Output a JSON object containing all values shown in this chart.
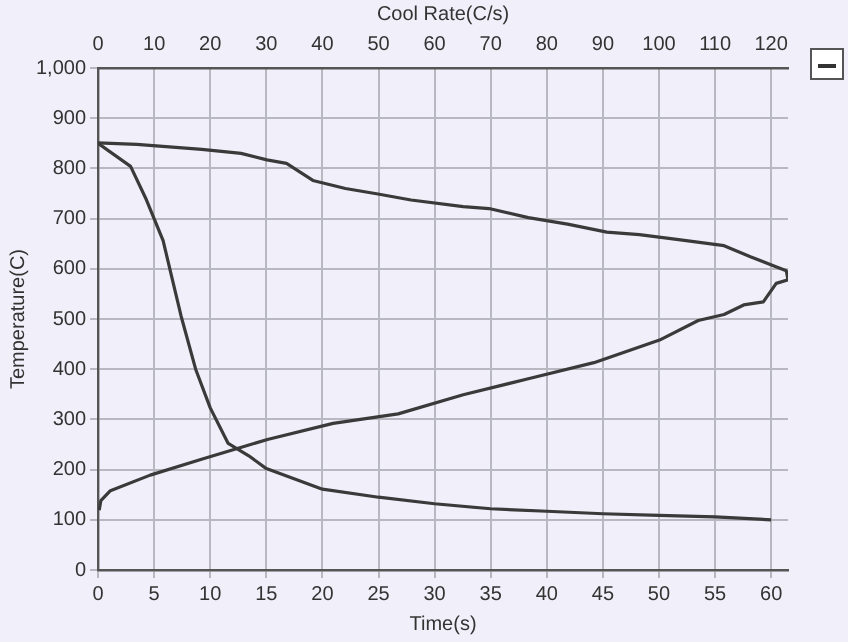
{
  "chart_data": {
    "type": "line",
    "xlabel": "Time(s)",
    "ylabel": "Temperature(C)",
    "x2label": "Cool Rate(C/s)",
    "xlim": [
      0,
      61.5
    ],
    "xticks": [
      0,
      5,
      10,
      15,
      20,
      25,
      30,
      35,
      40,
      45,
      50,
      55,
      60
    ],
    "x2lim": [
      0,
      123
    ],
    "x2ticks": [
      0,
      10,
      20,
      30,
      40,
      50,
      60,
      70,
      80,
      90,
      100,
      110,
      120
    ],
    "ylim": [
      0,
      1000
    ],
    "yticks": [
      0,
      100,
      200,
      300,
      400,
      500,
      600,
      700,
      800,
      900,
      {
        "value": 1000,
        "label": "1,000"
      }
    ],
    "grid": true,
    "marker": "none",
    "line_style": "solid",
    "series": [
      {
        "color": "#3a3a3a",
        "x": [
          0,
          2.9,
          4.3,
          5.8,
          6.6,
          7.4,
          8.7,
          10,
          11.6,
          13.4,
          15,
          20,
          25,
          30,
          35,
          40,
          45,
          50,
          55,
          60
        ],
        "values": [
          850,
          804,
          738,
          656,
          581,
          506,
          400,
          323,
          252,
          228,
          202,
          161,
          145,
          132,
          122,
          117,
          112,
          109,
          106,
          100
        ]
      },
      {
        "color": "#3a3a3a",
        "axis": "x2",
        "x": [
          0,
          6.9,
          18.5,
          25.5,
          30.1,
          33.6,
          38.3,
          44.1,
          49.9,
          55.8,
          65.1,
          69.7,
          76.7,
          83.7,
          90.7,
          96.5,
          103.5,
          111.6,
          116.3,
          120.4,
          122.7,
          123,
          120.9,
          118.6,
          115.1,
          111.6,
          107,
          100.1,
          88.4,
          76.7,
          65.1,
          53.5,
          41.9,
          30.2,
          18.6,
          9.3,
          2.2,
          0.5,
          0.2
        ],
        "values": [
          851,
          848,
          838,
          830,
          817,
          810,
          776,
          760,
          749,
          737,
          724,
          720,
          702,
          689,
          673,
          668,
          658,
          646,
          624,
          606,
          596,
          578,
          571,
          534,
          528,
          509,
          497,
          458,
          413,
          381,
          349,
          311,
          292,
          260,
          221,
          189,
          158,
          138,
          119
        ]
      }
    ]
  }
}
